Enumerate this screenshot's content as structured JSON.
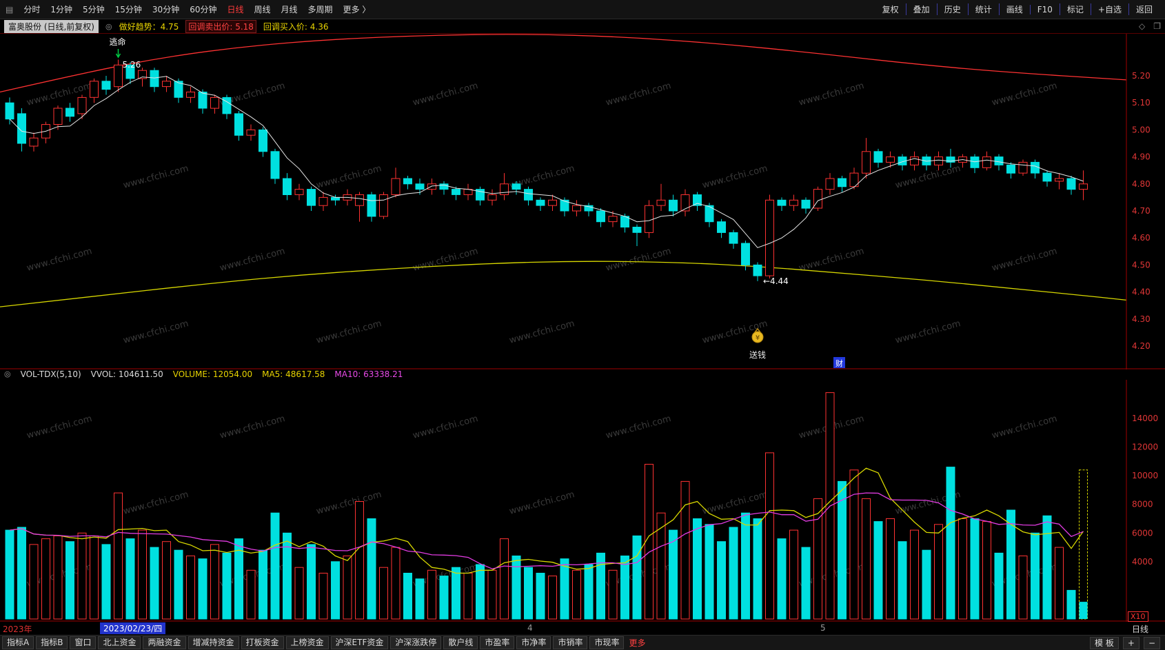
{
  "watermark": "www.cfchi.com",
  "colors": {
    "up": "#ff3232",
    "down": "#00e0e0",
    "yellow": "#d8d800",
    "magenta": "#e33ce3",
    "ma_white": "#e6e6e6",
    "axis": "#e03636",
    "frame": "#a00000",
    "marker_green": "#00cc44",
    "money_bag": "#e8b820",
    "cai_blue": "#2238dd",
    "date_chip_blue": "#2233cc"
  },
  "toolbar_top": {
    "menu_icon": "▤",
    "periods": [
      "分时",
      "1分钟",
      "5分钟",
      "15分钟",
      "30分钟",
      "60分钟",
      "日线",
      "周线",
      "月线",
      "多周期"
    ],
    "active_period": "日线",
    "more_label": "更多 〉",
    "right_items": [
      "复权",
      "叠加",
      "历史",
      "统计",
      "画线",
      "F10",
      "标记",
      "+自选",
      "返回"
    ]
  },
  "info_row": {
    "stock_chip": "富奥股份 (日线,前复权)",
    "trend_label": "做好趋势：4.75",
    "sell_label": "回调卖出价: 5.18",
    "buy_label": "回调买入价: 4.36"
  },
  "vol_header": {
    "indicator": "VOL-TDX(5,10)",
    "vvol": "VVOL: 104611.50",
    "volume": "VOLUME: 12054.00",
    "ma5": "MA5: 48617.58",
    "ma10": "MA10: 63338.21"
  },
  "date_axis": {
    "year": "2023年",
    "selected_date": "2023/02/23/四",
    "month_ticks": [
      "4",
      "5"
    ],
    "x10": "X10",
    "period_label": "日线"
  },
  "toolbar_bottom": {
    "items": [
      "指标A",
      "指标B",
      "窗口",
      "北上资金",
      "两融资金",
      "增减持资金",
      "打板资金",
      "上榜资金",
      "沪深ETF资金",
      "沪深涨跌停",
      "散户线",
      "市盈率",
      "市净率",
      "市销率",
      "市现率"
    ],
    "more": "更多",
    "template": "模 板",
    "plus": "+",
    "minus": "−"
  },
  "chart_data": {
    "type": "candlestick+volume",
    "title": "富奥股份 日线 前复权",
    "price_axis": {
      "ticks": [
        "5.20",
        "5.10",
        "5.00",
        "4.90",
        "4.80",
        "4.70",
        "4.60",
        "4.50",
        "4.40",
        "4.30",
        "4.20"
      ],
      "min": 4.2,
      "max": 5.37
    },
    "volume_axis": {
      "ticks": [
        "14000",
        "12000",
        "10000",
        "8000",
        "6000",
        "4000"
      ],
      "max": 16500,
      "scale_note": "X10"
    },
    "candles_format": [
      "open",
      "high",
      "low",
      "close",
      "volume"
    ],
    "candles": [
      [
        5.1,
        5.12,
        5.02,
        5.04,
        6200
      ],
      [
        5.06,
        5.08,
        4.92,
        4.95,
        6400
      ],
      [
        4.94,
        4.99,
        4.92,
        4.97,
        5200
      ],
      [
        4.97,
        5.03,
        4.95,
        5.02,
        5600
      ],
      [
        5.02,
        5.09,
        5.0,
        5.08,
        5800
      ],
      [
        5.08,
        5.1,
        5.03,
        5.05,
        5400
      ],
      [
        5.06,
        5.13,
        5.04,
        5.12,
        6000
      ],
      [
        5.12,
        5.19,
        5.1,
        5.18,
        5800
      ],
      [
        5.18,
        5.2,
        5.13,
        5.15,
        5200
      ],
      [
        5.16,
        5.26,
        5.14,
        5.24,
        8800
      ],
      [
        5.24,
        5.25,
        5.17,
        5.19,
        5600
      ],
      [
        5.19,
        5.23,
        5.16,
        5.22,
        6200
      ],
      [
        5.22,
        5.23,
        5.14,
        5.16,
        5000
      ],
      [
        5.16,
        5.2,
        5.14,
        5.18,
        5400
      ],
      [
        5.18,
        5.19,
        5.1,
        5.12,
        4800
      ],
      [
        5.12,
        5.16,
        5.1,
        5.14,
        4400
      ],
      [
        5.14,
        5.15,
        5.06,
        5.08,
        4200
      ],
      [
        5.08,
        5.13,
        5.06,
        5.12,
        5200
      ],
      [
        5.12,
        5.13,
        5.04,
        5.06,
        4600
      ],
      [
        5.06,
        5.07,
        4.96,
        4.98,
        5600
      ],
      [
        4.98,
        5.02,
        4.96,
        5.0,
        3400
      ],
      [
        5.0,
        5.01,
        4.9,
        4.92,
        4800
      ],
      [
        4.92,
        4.93,
        4.8,
        4.82,
        7400
      ],
      [
        4.82,
        4.84,
        4.74,
        4.76,
        6000
      ],
      [
        4.76,
        4.8,
        4.74,
        4.78,
        3600
      ],
      [
        4.78,
        4.79,
        4.7,
        4.72,
        5200
      ],
      [
        4.72,
        4.77,
        4.7,
        4.75,
        3200
      ],
      [
        4.75,
        4.76,
        4.72,
        4.74,
        4000
      ],
      [
        4.74,
        4.78,
        4.72,
        4.76,
        4400
      ],
      [
        4.72,
        4.77,
        4.66,
        4.76,
        8200
      ],
      [
        4.76,
        4.77,
        4.66,
        4.68,
        7000
      ],
      [
        4.68,
        4.77,
        4.67,
        4.76,
        3600
      ],
      [
        4.76,
        4.86,
        4.75,
        4.82,
        5000
      ],
      [
        4.82,
        4.83,
        4.78,
        4.8,
        3200
      ],
      [
        4.8,
        4.82,
        4.76,
        4.78,
        2800
      ],
      [
        4.78,
        4.82,
        4.76,
        4.8,
        3400
      ],
      [
        4.8,
        4.81,
        4.76,
        4.78,
        3000
      ],
      [
        4.78,
        4.79,
        4.74,
        4.76,
        3600
      ],
      [
        4.76,
        4.8,
        4.74,
        4.78,
        3200
      ],
      [
        4.78,
        4.79,
        4.72,
        4.74,
        3800
      ],
      [
        4.74,
        4.78,
        4.72,
        4.76,
        3400
      ],
      [
        4.76,
        4.84,
        4.74,
        4.8,
        5600
      ],
      [
        4.8,
        4.81,
        4.76,
        4.78,
        4400
      ],
      [
        4.78,
        4.79,
        4.72,
        4.74,
        3600
      ],
      [
        4.74,
        4.75,
        4.7,
        4.72,
        3200
      ],
      [
        4.72,
        4.76,
        4.7,
        4.74,
        3000
      ],
      [
        4.74,
        4.75,
        4.68,
        4.7,
        4200
      ],
      [
        4.7,
        4.74,
        4.68,
        4.72,
        3400
      ],
      [
        4.72,
        4.73,
        4.68,
        4.7,
        3800
      ],
      [
        4.7,
        4.71,
        4.64,
        4.66,
        4600
      ],
      [
        4.66,
        4.7,
        4.64,
        4.68,
        3400
      ],
      [
        4.68,
        4.69,
        4.62,
        4.64,
        4400
      ],
      [
        4.64,
        4.65,
        4.57,
        4.62,
        5800
      ],
      [
        4.62,
        4.74,
        4.6,
        4.72,
        10800
      ],
      [
        4.72,
        4.8,
        4.7,
        4.74,
        7400
      ],
      [
        4.74,
        4.76,
        4.68,
        4.7,
        6200
      ],
      [
        4.7,
        4.78,
        4.68,
        4.76,
        9600
      ],
      [
        4.76,
        4.77,
        4.7,
        4.72,
        7000
      ],
      [
        4.72,
        4.73,
        4.64,
        4.66,
        6600
      ],
      [
        4.66,
        4.67,
        4.6,
        4.62,
        5400
      ],
      [
        4.62,
        4.63,
        4.56,
        4.58,
        6400
      ],
      [
        4.58,
        4.59,
        4.48,
        4.5,
        7400
      ],
      [
        4.5,
        4.51,
        4.44,
        4.46,
        7000
      ],
      [
        4.46,
        4.76,
        4.45,
        4.74,
        11600
      ],
      [
        4.74,
        4.75,
        4.7,
        4.72,
        5600
      ],
      [
        4.72,
        4.76,
        4.7,
        4.74,
        6200
      ],
      [
        4.74,
        4.75,
        4.69,
        4.71,
        5000
      ],
      [
        4.71,
        4.79,
        4.7,
        4.78,
        8400
      ],
      [
        4.78,
        4.84,
        4.76,
        4.82,
        15800
      ],
      [
        4.82,
        4.83,
        4.77,
        4.79,
        9600
      ],
      [
        4.79,
        4.86,
        4.78,
        4.84,
        10400
      ],
      [
        4.84,
        4.97,
        4.82,
        4.92,
        8400
      ],
      [
        4.92,
        4.93,
        4.86,
        4.88,
        6800
      ],
      [
        4.88,
        4.92,
        4.86,
        4.9,
        7000
      ],
      [
        4.9,
        4.91,
        4.85,
        4.87,
        5400
      ],
      [
        4.87,
        4.92,
        4.85,
        4.9,
        6200
      ],
      [
        4.9,
        4.91,
        4.85,
        4.87,
        4800
      ],
      [
        4.87,
        4.92,
        4.85,
        4.9,
        6600
      ],
      [
        4.9,
        4.93,
        4.86,
        4.88,
        10600
      ],
      [
        4.88,
        4.91,
        4.86,
        4.9,
        7000
      ],
      [
        4.9,
        4.91,
        4.84,
        4.86,
        7000
      ],
      [
        4.86,
        4.92,
        4.85,
        4.9,
        6800
      ],
      [
        4.9,
        4.91,
        4.85,
        4.87,
        4600
      ],
      [
        4.87,
        4.88,
        4.82,
        4.84,
        7600
      ],
      [
        4.84,
        4.89,
        4.83,
        4.88,
        4400
      ],
      [
        4.88,
        4.89,
        4.82,
        4.84,
        6000
      ],
      [
        4.84,
        4.85,
        4.79,
        4.81,
        7200
      ],
      [
        4.81,
        4.84,
        4.78,
        4.82,
        5000
      ],
      [
        4.82,
        4.83,
        4.76,
        4.78,
        2000
      ],
      [
        4.78,
        4.85,
        4.74,
        4.8,
        10400
      ]
    ],
    "last_volume_dashed": true,
    "ma_red": [
      [
        0,
        5.14
      ],
      [
        120,
        5.21
      ],
      [
        240,
        5.27
      ],
      [
        360,
        5.31
      ],
      [
        480,
        5.335
      ],
      [
        620,
        5.35
      ],
      [
        760,
        5.355
      ],
      [
        900,
        5.345
      ],
      [
        1040,
        5.32
      ],
      [
        1180,
        5.285
      ],
      [
        1320,
        5.245
      ],
      [
        1450,
        5.215
      ],
      [
        1634,
        5.185
      ]
    ],
    "ma_yellow": [
      [
        0,
        4.345
      ],
      [
        140,
        4.385
      ],
      [
        280,
        4.425
      ],
      [
        420,
        4.46
      ],
      [
        560,
        4.485
      ],
      [
        700,
        4.505
      ],
      [
        840,
        4.515
      ],
      [
        980,
        4.51
      ],
      [
        1100,
        4.495
      ],
      [
        1220,
        4.47
      ],
      [
        1340,
        4.445
      ],
      [
        1460,
        4.415
      ],
      [
        1560,
        4.39
      ],
      [
        1634,
        4.37
      ]
    ],
    "markers": {
      "escape": {
        "index": 9,
        "text": "逃命",
        "price_label": "5.26"
      },
      "low": {
        "index": 62,
        "text": "←4.44"
      },
      "money": {
        "index": 62,
        "text": "送钱"
      },
      "cai": {
        "index": 66,
        "text": "财"
      }
    }
  }
}
